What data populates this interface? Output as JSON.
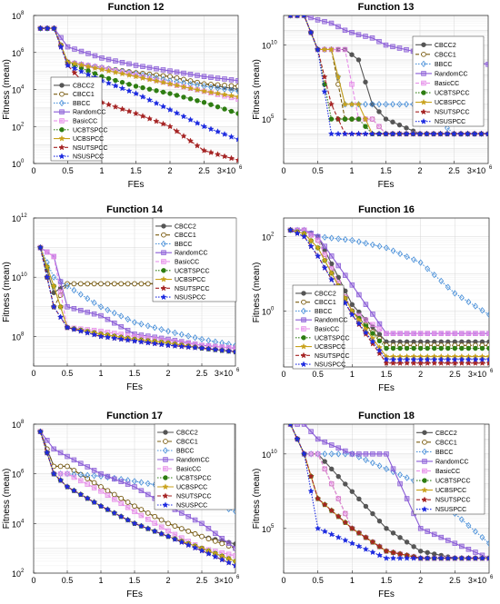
{
  "legend_entries": [
    "CBCC2",
    "CBCC1",
    "BBCC",
    "RandomCC",
    "BasicCC",
    "UCBTSPCC",
    "UCBSPCC",
    "NSUTSPCC",
    "NSUSPCC"
  ],
  "series_styles": [
    {
      "name": "CBCC2",
      "color": "#555555",
      "dash": "",
      "marker": "circle"
    },
    {
      "name": "CBCC1",
      "color": "#7a5c10",
      "dash": "4,2",
      "marker": "circle-open"
    },
    {
      "name": "BBCC",
      "color": "#4a90d9",
      "dash": "1.5,1.5",
      "marker": "diamond"
    },
    {
      "name": "RandomCC",
      "color": "#8a5cd6",
      "dash": "",
      "marker": "square"
    },
    {
      "name": "BasicCC",
      "color": "#e58ae8",
      "dash": "4,2",
      "marker": "square"
    },
    {
      "name": "UCBTSPCC",
      "color": "#2e7d12",
      "dash": "1.5,1.5",
      "marker": "circle"
    },
    {
      "name": "UCBSPCC",
      "color": "#c9a21c",
      "dash": "",
      "marker": "star"
    },
    {
      "name": "NSUTSPCC",
      "color": "#a52323",
      "dash": "4,2",
      "marker": "star"
    },
    {
      "name": "NSUSPCC",
      "color": "#1c2ae0",
      "dash": "1.5,1.5",
      "marker": "star"
    }
  ],
  "panels_text": {
    "x_label": "FEs",
    "y_label": "Fitness (mean)",
    "x_ticks": [
      "0",
      "0.5",
      "1",
      "1.5",
      "2",
      "2.5"
    ],
    "x_multiplier_base": "3×10",
    "x_multiplier_exp": "6"
  },
  "chart_data": [
    {
      "type": "line",
      "title": "Function 12",
      "xlabel": "FEs",
      "ylabel": "Fitness (mean)",
      "log_y": true,
      "xlim": [
        0,
        3
      ],
      "ylim_exp": [
        0,
        8
      ],
      "y_tick_exps": [
        0,
        2,
        4,
        6,
        8
      ],
      "grid": true,
      "legend_placement": "left",
      "x": [
        0.1,
        0.3,
        0.5,
        1,
        1.5,
        2,
        2.5,
        3
      ],
      "series": [
        {
          "name": "CBCC2",
          "values": [
            20000000.0,
            20000000.0,
            300000.0,
            150000.0,
            80000.0,
            50000.0,
            20000.0,
            10000.0
          ]
        },
        {
          "name": "CBCC1",
          "values": [
            20000000.0,
            20000000.0,
            300000.0,
            150000.0,
            80000.0,
            50000.0,
            20000.0,
            15000.0
          ]
        },
        {
          "name": "BBCC",
          "values": [
            20000000.0,
            20000000.0,
            300000.0,
            150000.0,
            70000.0,
            30000.0,
            15000.0,
            8000.0
          ]
        },
        {
          "name": "RandomCC",
          "values": [
            20000000.0,
            20000000.0,
            2000000.0,
            500000.0,
            200000.0,
            100000.0,
            50000.0,
            30000.0
          ]
        },
        {
          "name": "BasicCC",
          "values": [
            20000000.0,
            20000000.0,
            300000.0,
            150000.0,
            60000.0,
            20000.0,
            8000.0,
            3000.0
          ]
        },
        {
          "name": "UCBTSPCC",
          "values": [
            20000000.0,
            20000000.0,
            300000.0,
            50000.0,
            15000.0,
            6000.0,
            2000.0,
            500.0
          ]
        },
        {
          "name": "UCBSPCC",
          "values": [
            20000000.0,
            20000000.0,
            300000.0,
            120000.0,
            50000.0,
            20000.0,
            8000.0,
            4000.0
          ]
        },
        {
          "name": "NSUTSPCC",
          "values": [
            20000000.0,
            20000000.0,
            200000.0,
            2000.0,
            500.0,
            100.0,
            5.0,
            1.5
          ]
        },
        {
          "name": "NSUSPCC",
          "values": [
            20000000.0,
            20000000.0,
            200000.0,
            30000.0,
            6000.0,
            800.0,
            100.0,
            20.0
          ]
        }
      ]
    },
    {
      "type": "line",
      "title": "Function 13",
      "xlabel": "FEs",
      "ylabel": "Fitness (mean)",
      "log_y": true,
      "xlim": [
        0,
        3
      ],
      "ylim_exp": [
        2,
        12
      ],
      "y_tick_exps": [
        5,
        10
      ],
      "grid": true,
      "legend_placement": "right",
      "x": [
        0.1,
        0.3,
        0.5,
        0.7,
        0.9,
        1.1,
        1.3,
        1.5,
        2,
        2.5,
        3
      ],
      "series": [
        {
          "name": "CBCC2",
          "values": [
            1000000000000.0,
            1000000000000.0,
            5000000000.0,
            5000000000.0,
            5000000000.0,
            1000000000.0,
            1000000.0,
            100000.0,
            10000.0,
            10000.0,
            10000.0
          ]
        },
        {
          "name": "CBCC1",
          "values": [
            1000000000000.0,
            1000000000000.0,
            5000000000.0,
            5000000000.0,
            100000.0,
            100000.0,
            100000.0,
            10000.0,
            10000.0,
            10000.0,
            10000.0
          ]
        },
        {
          "name": "BBCC",
          "values": [
            1000000000000.0,
            1000000000000.0,
            5000000000.0,
            5000000000.0,
            1000000.0,
            1000000.0,
            1000000.0,
            1000000.0,
            1000000.0,
            10000.0,
            10000.0
          ]
        },
        {
          "name": "RandomCC",
          "values": [
            1000000000000.0,
            1000000000000.0,
            500000000000.0,
            300000000000.0,
            100000000000.0,
            50000000000.0,
            30000000000.0,
            10000000000.0,
            3000000000.0,
            1000000000.0,
            500000000.0
          ]
        },
        {
          "name": "BasicCC",
          "values": [
            1000000000000.0,
            1000000000000.0,
            5000000000.0,
            5000000000.0,
            5000000000.0,
            100000.0,
            100000.0,
            10000.0,
            10000.0,
            10000.0,
            10000.0
          ]
        },
        {
          "name": "UCBTSPCC",
          "values": [
            1000000000000.0,
            1000000000000.0,
            5000000000.0,
            100000.0,
            100000.0,
            100000.0,
            10000.0,
            10000.0,
            10000.0,
            10000.0,
            10000.0
          ]
        },
        {
          "name": "UCBSPCC",
          "values": [
            1000000000000.0,
            1000000000000.0,
            5000000000.0,
            5000000000.0,
            1000000.0,
            1000000.0,
            10000.0,
            10000.0,
            10000.0,
            10000.0,
            10000.0
          ]
        },
        {
          "name": "NSUTSPCC",
          "values": [
            1000000000000.0,
            1000000000000.0,
            5000000000.0,
            1000000.0,
            10000.0,
            10000.0,
            10000.0,
            10000.0,
            10000.0,
            10000.0,
            10000.0
          ]
        },
        {
          "name": "NSUSPCC",
          "values": [
            1000000000000.0,
            1000000000000.0,
            5000000000.0,
            10000.0,
            10000.0,
            10000.0,
            10000.0,
            10000.0,
            10000.0,
            10000.0,
            10000.0
          ]
        }
      ]
    },
    {
      "type": "line",
      "title": "Function 14",
      "xlabel": "FEs",
      "ylabel": "Fitness (mean)",
      "log_y": true,
      "xlim": [
        0,
        3
      ],
      "ylim_exp": [
        7,
        12
      ],
      "y_tick_exps": [
        8,
        10,
        12
      ],
      "grid": true,
      "legend_placement": "right",
      "x": [
        0.1,
        0.3,
        0.5,
        1,
        1.5,
        2,
        2.5,
        3
      ],
      "series": [
        {
          "name": "CBCC2",
          "values": [
            100000000000.0,
            3000000000.0,
            6000000000.0,
            6000000000.0,
            6000000000.0,
            6000000000.0,
            6000000000.0,
            6000000000.0
          ]
        },
        {
          "name": "CBCC1",
          "values": [
            100000000000.0,
            1000000000.0,
            6000000000.0,
            6000000000.0,
            6000000000.0,
            6000000000.0,
            6000000000.0,
            6000000000.0
          ]
        },
        {
          "name": "BBCC",
          "values": [
            100000000000.0,
            10000000000.0,
            5000000000.0,
            1000000000.0,
            300000000.0,
            150000000.0,
            80000000.0,
            50000000.0
          ]
        },
        {
          "name": "RandomCC",
          "values": [
            100000000000.0,
            50000000000.0,
            1000000000.0,
            500000000.0,
            120000000.0,
            80000000.0,
            50000000.0,
            40000000.0
          ]
        },
        {
          "name": "BasicCC",
          "values": [
            100000000000.0,
            50000000000.0,
            200000000.0,
            150000000.0,
            100000000.0,
            70000000.0,
            50000000.0,
            40000000.0
          ]
        },
        {
          "name": "UCBTSPCC",
          "values": [
            100000000000.0,
            5000000000.0,
            200000000.0,
            120000000.0,
            80000000.0,
            60000000.0,
            40000000.0,
            30000000.0
          ]
        },
        {
          "name": "UCBSPCC",
          "values": [
            100000000000.0,
            5000000000.0,
            200000000.0,
            120000000.0,
            80000000.0,
            60000000.0,
            40000000.0,
            30000000.0
          ]
        },
        {
          "name": "NSUTSPCC",
          "values": [
            100000000000.0,
            1000000000.0,
            200000000.0,
            100000000.0,
            70000000.0,
            50000000.0,
            40000000.0,
            30000000.0
          ]
        },
        {
          "name": "NSUSPCC",
          "values": [
            100000000000.0,
            1000000000.0,
            200000000.0,
            100000000.0,
            70000000.0,
            50000000.0,
            40000000.0,
            30000000.0
          ]
        }
      ]
    },
    {
      "type": "line",
      "title": "Function 16",
      "xlabel": "FEs",
      "ylabel": "Fitness (mean)",
      "log_y": true,
      "xlim": [
        0,
        3
      ],
      "ylim_exp": [
        -1.5,
        2.5
      ],
      "y_tick_exps": [
        0,
        2
      ],
      "grid": true,
      "legend_placement": "left",
      "x": [
        0.1,
        0.3,
        0.5,
        1,
        1.5,
        2,
        2.5,
        3
      ],
      "series": [
        {
          "name": "CBCC2",
          "values": [
            150,
            150,
            100,
            1.5,
            0.15,
            0.15,
            0.15,
            0.15
          ]
        },
        {
          "name": "CBCC1",
          "values": [
            150,
            150,
            80,
            1,
            0.12,
            0.12,
            0.12,
            0.12
          ]
        },
        {
          "name": "BBCC",
          "values": [
            150,
            150,
            100,
            80,
            50,
            20,
            3,
            0.8
          ]
        },
        {
          "name": "RandomCC",
          "values": [
            150,
            150,
            100,
            5,
            0.25,
            0.25,
            0.25,
            0.25
          ]
        },
        {
          "name": "BasicCC",
          "values": [
            150,
            150,
            80,
            1,
            0.25,
            0.25,
            0.25,
            0.25
          ]
        },
        {
          "name": "UCBTSPCC",
          "values": [
            150,
            120,
            50,
            1,
            0.1,
            0.1,
            0.1,
            0.1
          ]
        },
        {
          "name": "UCBSPCC",
          "values": [
            150,
            120,
            50,
            1,
            0.06,
            0.06,
            0.06,
            0.06
          ]
        },
        {
          "name": "NSUTSPCC",
          "values": [
            150,
            100,
            30,
            0.8,
            0.04,
            0.04,
            0.04,
            0.04
          ]
        },
        {
          "name": "NSUSPCC",
          "values": [
            150,
            100,
            30,
            0.8,
            0.05,
            0.05,
            0.05,
            0.05
          ]
        }
      ]
    },
    {
      "type": "line",
      "title": "Function 17",
      "xlabel": "FEs",
      "ylabel": "Fitness (mean)",
      "log_y": true,
      "xlim": [
        0,
        3
      ],
      "ylim_exp": [
        2,
        8
      ],
      "y_tick_exps": [
        2,
        4,
        6,
        8
      ],
      "grid": true,
      "legend_placement": "right",
      "x": [
        0.1,
        0.3,
        0.5,
        1,
        1.5,
        2,
        2.5,
        3
      ],
      "series": [
        {
          "name": "CBCC2",
          "values": [
            50000000.0,
            2000000.0,
            2000000.0,
            300000.0,
            50000.0,
            10000.0,
            3000.0,
            1500.0
          ]
        },
        {
          "name": "CBCC1",
          "values": [
            50000000.0,
            2000000.0,
            2000000.0,
            300000.0,
            50000.0,
            10000.0,
            3000.0,
            1000.0
          ]
        },
        {
          "name": "BBCC",
          "values": [
            50000000.0,
            1000000.0,
            1000000.0,
            800000.0,
            500000.0,
            300000.0,
            100000.0,
            30000.0
          ]
        },
        {
          "name": "RandomCC",
          "values": [
            50000000.0,
            10000000.0,
            5000000.0,
            1000000.0,
            300000.0,
            50000.0,
            10000.0,
            1000.0
          ]
        },
        {
          "name": "BasicCC",
          "values": [
            50000000.0,
            1000000.0,
            1000000.0,
            200000.0,
            30000.0,
            5000.0,
            1000.0,
            500.0
          ]
        },
        {
          "name": "UCBTSPCC",
          "values": [
            50000000.0,
            1000000.0,
            300000.0,
            50000.0,
            10000.0,
            3000.0,
            1000.0,
            300.0
          ]
        },
        {
          "name": "UCBSPCC",
          "values": [
            50000000.0,
            1000000.0,
            300000.0,
            50000.0,
            10000.0,
            3000.0,
            1000.0,
            300.0
          ]
        },
        {
          "name": "NSUTSPCC",
          "values": [
            50000000.0,
            1000000.0,
            300000.0,
            50000.0,
            10000.0,
            3000.0,
            800.0,
            200.0
          ]
        },
        {
          "name": "NSUSPCC",
          "values": [
            50000000.0,
            1000000.0,
            300000.0,
            50000.0,
            10000.0,
            3000.0,
            800.0,
            200.0
          ]
        }
      ]
    },
    {
      "type": "line",
      "title": "Function 18",
      "xlabel": "FEs",
      "ylabel": "Fitness (mean)",
      "log_y": true,
      "xlim": [
        0,
        3
      ],
      "ylim_exp": [
        2,
        12
      ],
      "y_tick_exps": [
        5,
        10
      ],
      "grid": true,
      "legend_placement": "right",
      "x": [
        0.1,
        0.3,
        0.5,
        1,
        1.5,
        2,
        2.5,
        3
      ],
      "series": [
        {
          "name": "CBCC2",
          "values": [
            1000000000000.0,
            10000000000.0,
            10000000000.0,
            30000000.0,
            100000.0,
            3000.0,
            1000.0,
            1000.0
          ]
        },
        {
          "name": "CBCC1",
          "values": [
            1000000000000.0,
            10000000000.0,
            10000000000.0,
            100000.0,
            3000.0,
            1000.0,
            1000.0,
            1000.0
          ]
        },
        {
          "name": "BBCC",
          "values": [
            1000000000000.0,
            10000000000.0,
            10000000000.0,
            10000000000.0,
            1000000000.0,
            100000000.0,
            1000000.0,
            10000.0
          ]
        },
        {
          "name": "RandomCC",
          "values": [
            1000000000000.0,
            1000000000000.0,
            100000000000.0,
            10000000000.0,
            10000000000.0,
            100000.0,
            10000.0,
            1000.0
          ]
        },
        {
          "name": "BasicCC",
          "values": [
            1000000000000.0,
            10000000000.0,
            10000000000.0,
            100000.0,
            3000.0,
            1000.0,
            1000.0,
            1000.0
          ]
        },
        {
          "name": "UCBTSPCC",
          "values": [
            1000000000000.0,
            10000000000.0,
            10000000.0,
            100000.0,
            3000.0,
            1000.0,
            1000.0,
            1000.0
          ]
        },
        {
          "name": "UCBSPCC",
          "values": [
            1000000000000.0,
            10000000000.0,
            10000000.0,
            100000.0,
            3000.0,
            1000.0,
            1000.0,
            1000.0
          ]
        },
        {
          "name": "NSUTSPCC",
          "values": [
            1000000000000.0,
            10000000000.0,
            10000000.0,
            100000.0,
            3000.0,
            1000.0,
            1000.0,
            1000.0
          ]
        },
        {
          "name": "NSUSPCC",
          "values": [
            1000000000000.0,
            10000000000.0,
            100000.0,
            10000.0,
            1000.0,
            1000.0,
            1000.0,
            1000.0
          ]
        }
      ]
    }
  ]
}
